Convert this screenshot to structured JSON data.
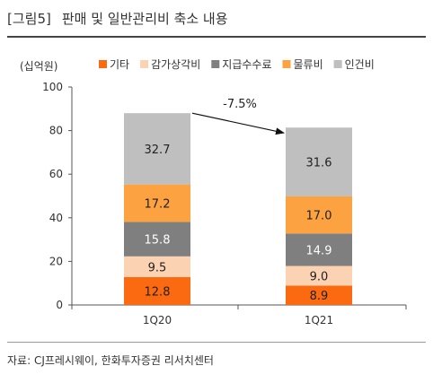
{
  "header": {
    "figure_label": "[그림5]",
    "title": "판매 및 일반관리비 축소 내용"
  },
  "footer": {
    "source": "자료: CJ프레시웨이, 한화투자증권 리서치센터"
  },
  "chart_data": {
    "type": "bar",
    "stacked": true,
    "unit_label": "(십억원)",
    "categories": [
      "1Q20",
      "1Q21"
    ],
    "ylim": [
      0,
      100
    ],
    "yticks": [
      0,
      20,
      40,
      60,
      80,
      100
    ],
    "series": [
      {
        "name": "기타",
        "values": [
          12.8,
          8.9
        ],
        "color": "#fb6a10",
        "label_color": "#222222"
      },
      {
        "name": "감가상각비",
        "values": [
          9.5,
          9.0
        ],
        "color": "#fcd3b2",
        "label_color": "#222222"
      },
      {
        "name": "지급수수료",
        "values": [
          15.8,
          14.9
        ],
        "color": "#7f7f7f",
        "label_color": "#ffffff"
      },
      {
        "name": "물류비",
        "values": [
          17.2,
          17.0
        ],
        "color": "#fca241",
        "label_color": "#222222"
      },
      {
        "name": "인건비",
        "values": [
          32.7,
          31.6
        ],
        "color": "#bfbfbf",
        "label_color": "#222222"
      }
    ],
    "annotation": {
      "text": "-7.5%",
      "from": "1Q20",
      "to": "1Q21"
    },
    "grid": false,
    "legend_position": "top"
  }
}
